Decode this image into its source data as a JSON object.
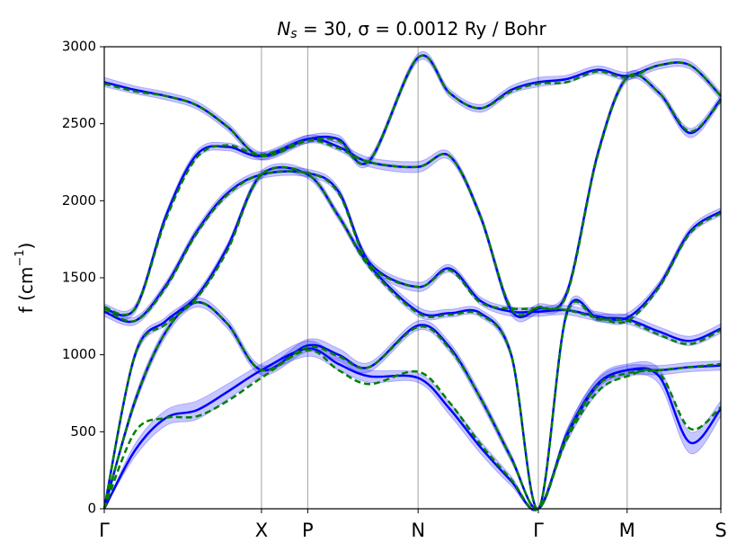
{
  "chart_data": {
    "type": "line",
    "title": {
      "main": "N",
      "sub": "s",
      "rest": " = 30, σ = 0.0012 Ry / Bohr"
    },
    "ylabel": {
      "main": "f (cm",
      "sup": "−1",
      "end": ")"
    },
    "x": [
      0,
      0.05,
      0.1,
      0.15,
      0.2,
      0.255,
      0.33,
      0.38,
      0.43,
      0.509,
      0.56,
      0.61,
      0.66,
      0.704,
      0.75,
      0.8,
      0.848,
      0.9,
      0.95,
      1.0
    ],
    "xlim": [
      0,
      1
    ],
    "xticks": [
      {
        "value": 0,
        "label": "Γ"
      },
      {
        "value": 0.255,
        "label": "X"
      },
      {
        "value": 0.33,
        "label": "P"
      },
      {
        "value": 0.509,
        "label": "N"
      },
      {
        "value": 0.704,
        "label": "Γ"
      },
      {
        "value": 0.848,
        "label": "M"
      },
      {
        "value": 1.0,
        "label": "S"
      }
    ],
    "ylim": [
      0,
      3000
    ],
    "yticks": [
      0,
      500,
      1000,
      1500,
      2000,
      2500,
      3000
    ],
    "grid": "x",
    "series": [
      {
        "color": "#0000ff",
        "style": "solid",
        "values": [
          0,
          380,
          590,
          640,
          760,
          900,
          1040,
          940,
          860,
          850,
          650,
          400,
          180,
          0,
          470,
          800,
          900,
          860,
          430,
          650
        ],
        "error": [
          0,
          40,
          50,
          60,
          50,
          40,
          50,
          40,
          40,
          30,
          40,
          40,
          30,
          0,
          40,
          50,
          40,
          50,
          70,
          50
        ]
      },
      {
        "color": "#0000ff",
        "style": "solid",
        "values": [
          0,
          700,
          1150,
          1340,
          1200,
          900,
          1060,
          1000,
          920,
          1190,
          1050,
          720,
          330,
          0,
          480,
          810,
          900,
          900,
          920,
          930
        ],
        "error": [
          0,
          30,
          30,
          30,
          30,
          30,
          40,
          40,
          30,
          30,
          30,
          30,
          25,
          0,
          30,
          30,
          30,
          30,
          30,
          30
        ]
      },
      {
        "color": "#0000ff",
        "style": "solid",
        "values": [
          0,
          1000,
          1220,
          1380,
          1700,
          2170,
          2170,
          1900,
          1580,
          1280,
          1270,
          1270,
          1000,
          0,
          1270,
          1240,
          1230,
          1150,
          1090,
          1170
        ],
        "error": [
          0,
          25,
          25,
          25,
          25,
          25,
          25,
          25,
          25,
          30,
          25,
          25,
          25,
          0,
          25,
          25,
          30,
          30,
          30,
          30
        ]
      },
      {
        "color": "#0000ff",
        "style": "solid",
        "values": [
          1280,
          1220,
          1450,
          1800,
          2050,
          2170,
          2180,
          2060,
          1600,
          1440,
          1560,
          1350,
          1280,
          1280,
          1290,
          1250,
          1240,
          1450,
          1800,
          1930
        ],
        "error": [
          30,
          25,
          25,
          25,
          25,
          25,
          25,
          25,
          25,
          30,
          25,
          25,
          30,
          30,
          30,
          30,
          30,
          25,
          25,
          25
        ]
      },
      {
        "color": "#0000ff",
        "style": "solid",
        "values": [
          1300,
          1300,
          1900,
          2300,
          2350,
          2290,
          2400,
          2350,
          2250,
          2220,
          2290,
          1900,
          1290,
          1300,
          1400,
          2300,
          2800,
          2700,
          2440,
          2660
        ],
        "error": [
          30,
          25,
          25,
          25,
          25,
          25,
          25,
          25,
          30,
          35,
          25,
          25,
          30,
          30,
          25,
          25,
          25,
          25,
          30,
          25
        ]
      },
      {
        "color": "#0000ff",
        "style": "solid",
        "values": [
          2770,
          2720,
          2680,
          2620,
          2480,
          2290,
          2400,
          2400,
          2260,
          2930,
          2700,
          2600,
          2720,
          2770,
          2790,
          2850,
          2810,
          2880,
          2880,
          2680
        ],
        "error": [
          30,
          25,
          25,
          25,
          25,
          25,
          25,
          25,
          25,
          25,
          25,
          25,
          25,
          30,
          25,
          25,
          25,
          25,
          25,
          25
        ]
      },
      {
        "color": "#008000",
        "style": "dashed",
        "values": [
          0,
          500,
          590,
          600,
          700,
          850,
          1030,
          900,
          810,
          890,
          690,
          420,
          190,
          0,
          450,
          760,
          860,
          880,
          520,
          660
        ]
      },
      {
        "color": "#008000",
        "style": "dashed",
        "values": [
          0,
          700,
          1150,
          1340,
          1200,
          900,
          1050,
          990,
          920,
          1180,
          1040,
          720,
          330,
          0,
          470,
          800,
          880,
          900,
          920,
          940
        ]
      },
      {
        "color": "#008000",
        "style": "dashed",
        "values": [
          0,
          1000,
          1200,
          1370,
          1680,
          2170,
          2170,
          1900,
          1570,
          1270,
          1260,
          1260,
          1000,
          0,
          1260,
          1230,
          1220,
          1130,
          1070,
          1160
        ]
      },
      {
        "color": "#008000",
        "style": "dashed",
        "values": [
          1300,
          1220,
          1440,
          1790,
          2040,
          2170,
          2180,
          2050,
          1590,
          1440,
          1550,
          1340,
          1300,
          1300,
          1290,
          1240,
          1220,
          1440,
          1790,
          1920
        ]
      },
      {
        "color": "#008000",
        "style": "dashed",
        "values": [
          1310,
          1300,
          1880,
          2280,
          2360,
          2300,
          2390,
          2340,
          2250,
          2220,
          2290,
          1900,
          1300,
          1310,
          1390,
          2290,
          2800,
          2700,
          2450,
          2650
        ]
      },
      {
        "color": "#008000",
        "style": "dashed",
        "values": [
          2760,
          2710,
          2680,
          2620,
          2480,
          2290,
          2390,
          2390,
          2260,
          2930,
          2700,
          2600,
          2710,
          2760,
          2770,
          2840,
          2800,
          2880,
          2880,
          2680
        ]
      }
    ]
  }
}
